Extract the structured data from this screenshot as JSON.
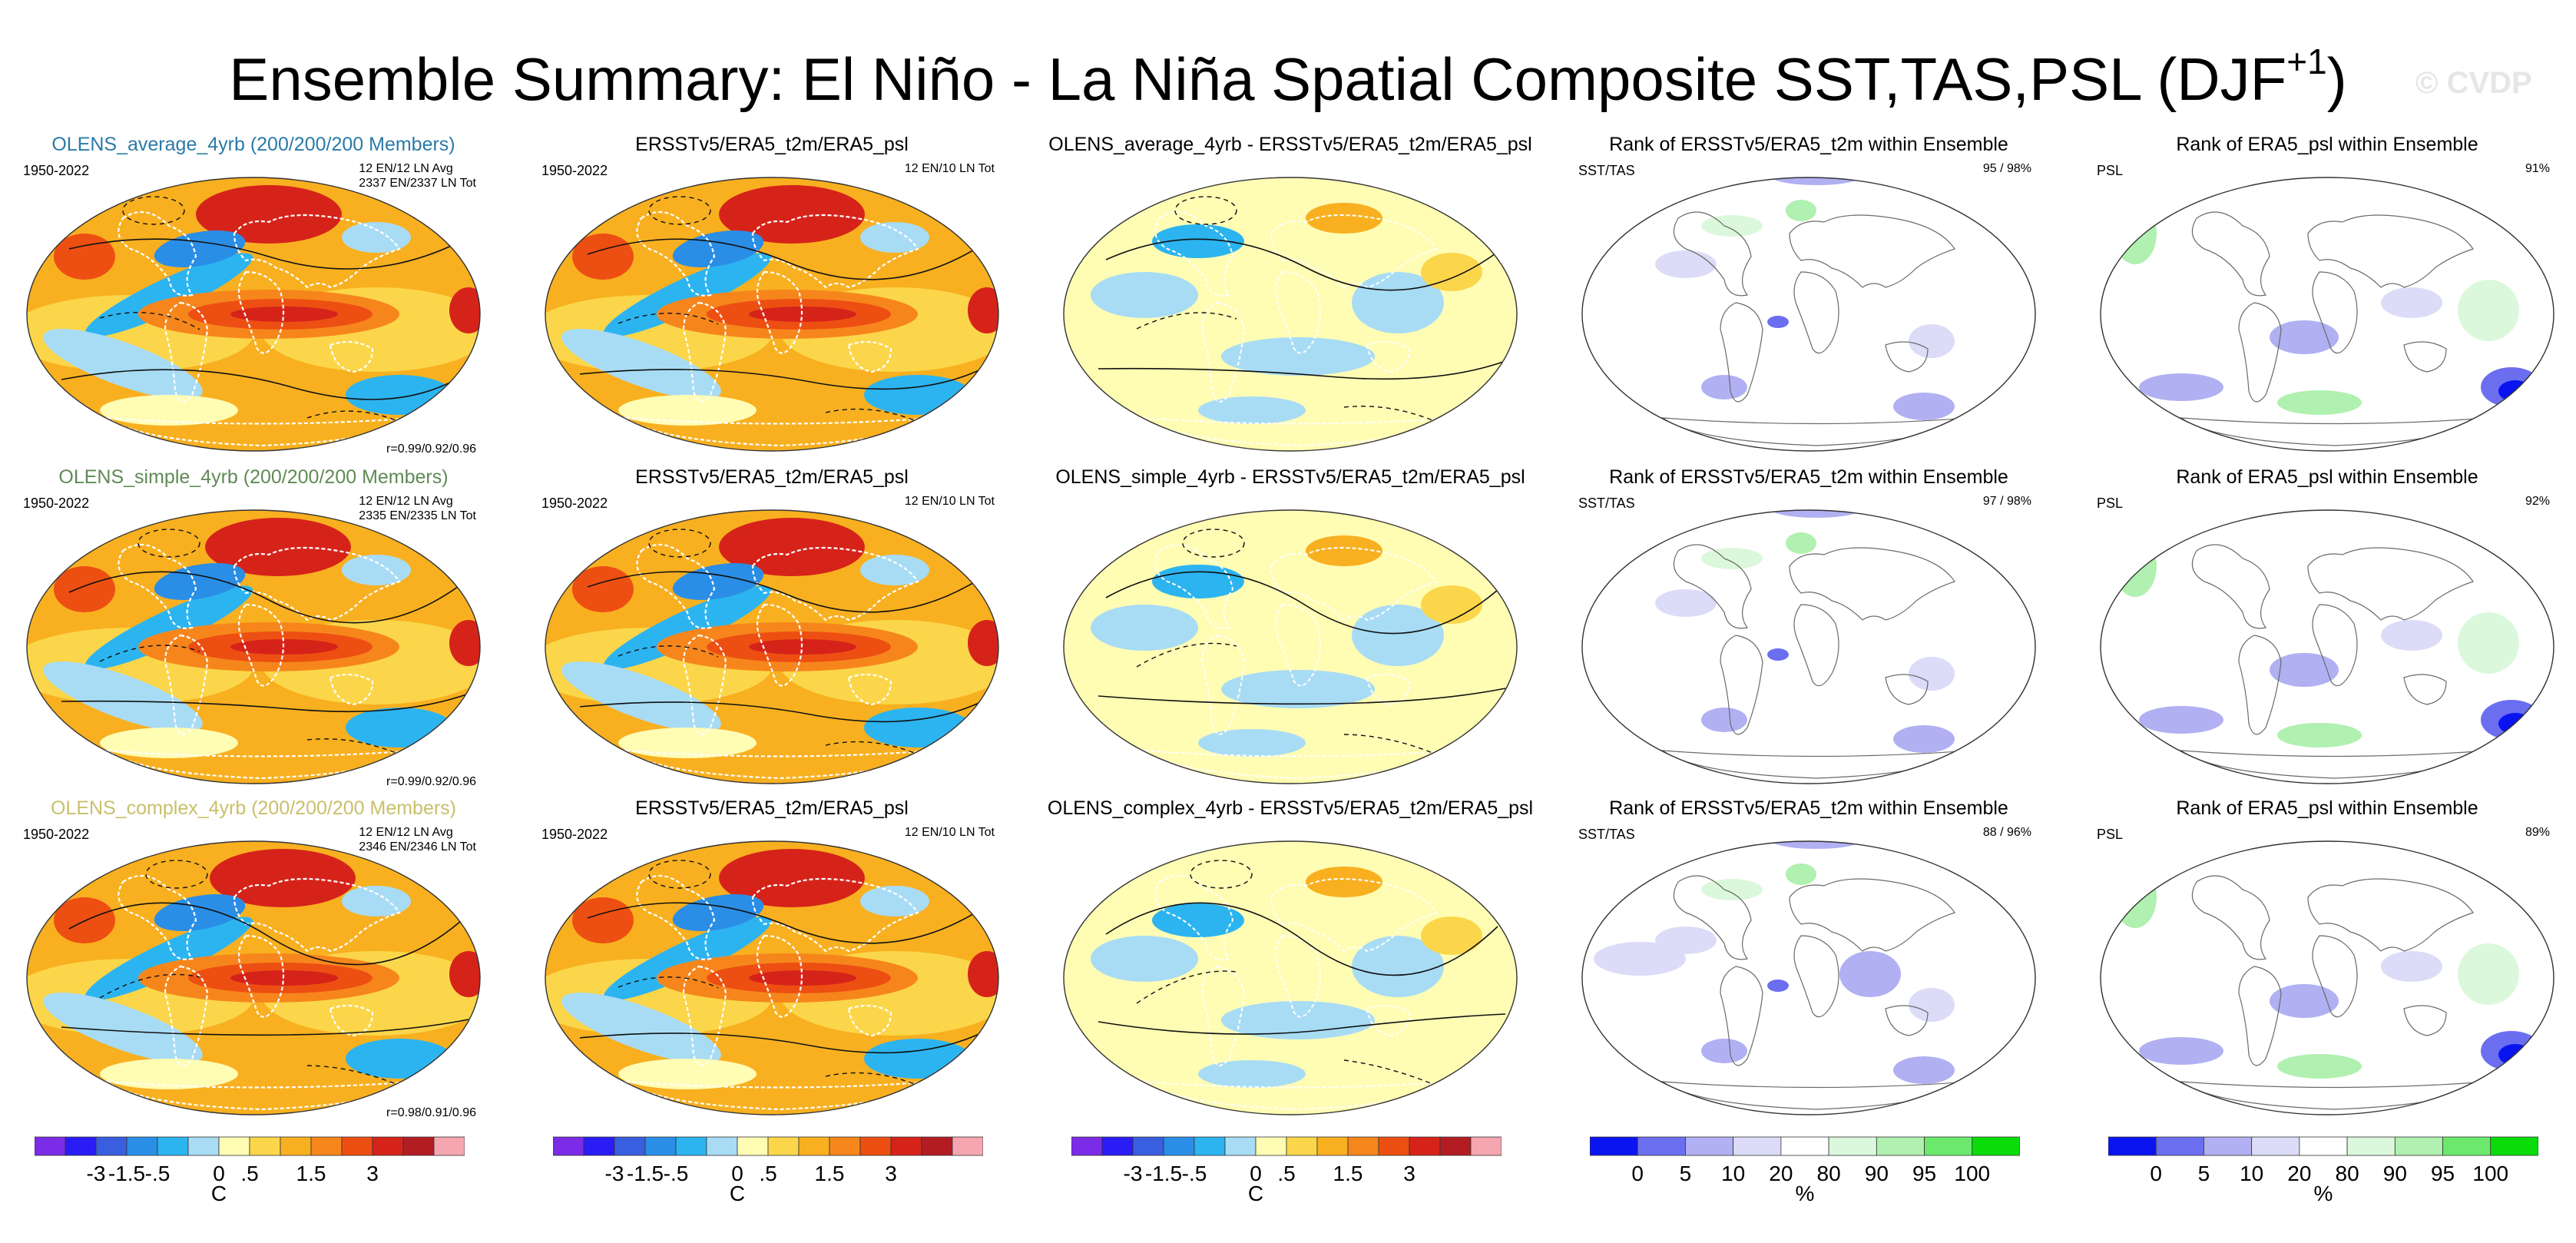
{
  "title": {
    "main": "Ensemble Summary: El Niño - La Niña Spatial Composite SST,TAS,PSL (DJF",
    "superscript": "+1",
    "close": ")",
    "watermark": "© CVDP"
  },
  "colors": {
    "temp_scale": [
      "#7b2ce6",
      "#2a1cf5",
      "#3a5ee0",
      "#2a8ee6",
      "#2cb4f0",
      "#a8dcf5",
      "#fffcb4",
      "#fbd64a",
      "#f8b020",
      "#f6861c",
      "#ed4f12",
      "#d6231a",
      "#b41c24",
      "#f6a6b0"
    ],
    "rank_scale": [
      "#0a14f0",
      "#6c6ef0",
      "#b0b0f2",
      "#dcdcf8",
      "#ffffff",
      "#dcf8dc",
      "#b0f0b0",
      "#6ce86c",
      "#0adc0a"
    ],
    "land_outline_temp": "#ffffff",
    "land_outline_rank": "#6a6a6a"
  },
  "rows": [
    {
      "ensemble_title": "OLENS_average_4yrb (200/200/200 Members)",
      "ensemble_title_color": "#2a7aa8",
      "period": "1950-2022",
      "counts_line1": "12 EN/12 LN Avg",
      "counts_line2": "2337 EN/2337 LN Tot",
      "corr": "r=0.99/0.92/0.96",
      "obs_title": "ERSSTv5/ERA5_t2m/ERA5_psl",
      "obs_period": "1950-2022",
      "obs_counts": "12 EN/10 LN Tot",
      "diff_title": "OLENS_average_4yrb - ERSSTv5/ERA5_t2m/ERA5_psl",
      "rank_sst_title": "Rank of ERSSTv5/ERA5_t2m within Ensemble",
      "rank_sst_left": "SST/TAS",
      "rank_sst_right": "95 / 98%",
      "rank_psl_title": "Rank of ERA5_psl within Ensemble",
      "rank_psl_left": "PSL",
      "rank_psl_right": "91%"
    },
    {
      "ensemble_title": "OLENS_simple_4yrb (200/200/200 Members)",
      "ensemble_title_color": "#5f8a55",
      "period": "1950-2022",
      "counts_line1": "12 EN/12 LN Avg",
      "counts_line2": "2335 EN/2335 LN Tot",
      "corr": "r=0.99/0.92/0.96",
      "obs_title": "ERSSTv5/ERA5_t2m/ERA5_psl",
      "obs_period": "1950-2022",
      "obs_counts": "12 EN/10 LN Tot",
      "diff_title": "OLENS_simple_4yrb - ERSSTv5/ERA5_t2m/ERA5_psl",
      "rank_sst_title": "Rank of ERSSTv5/ERA5_t2m within Ensemble",
      "rank_sst_left": "SST/TAS",
      "rank_sst_right": "97 / 98%",
      "rank_psl_title": "Rank of ERA5_psl within Ensemble",
      "rank_psl_left": "PSL",
      "rank_psl_right": "92%"
    },
    {
      "ensemble_title": "OLENS_complex_4yrb (200/200/200 Members)",
      "ensemble_title_color": "#c8c06a",
      "period": "1950-2022",
      "counts_line1": "12 EN/12 LN Avg",
      "counts_line2": "2346 EN/2346 LN Tot",
      "corr": "r=0.98/0.91/0.96",
      "obs_title": "ERSSTv5/ERA5_t2m/ERA5_psl",
      "obs_period": "1950-2022",
      "obs_counts": "12 EN/10 LN Tot",
      "diff_title": "OLENS_complex_4yrb - ERSSTv5/ERA5_t2m/ERA5_psl",
      "rank_sst_title": "Rank of ERSSTv5/ERA5_t2m within Ensemble",
      "rank_sst_left": "SST/TAS",
      "rank_sst_right": "88 / 96%",
      "rank_psl_title": "Rank of ERA5_psl within Ensemble",
      "rank_psl_left": "PSL",
      "rank_psl_right": "89%"
    }
  ],
  "chart_data": {
    "type": "heatmap",
    "description_type": "map grid of composite anomalies and ensemble ranks",
    "temp_colorbar": {
      "tick_labels": [
        "-3",
        "-1.5",
        "-.5",
        "0",
        ".5",
        "1.5",
        "3"
      ],
      "tick_values": [
        -3,
        -1.5,
        -0.5,
        0,
        0.5,
        1.5,
        3
      ],
      "unit": "C"
    },
    "rank_colorbar": {
      "tick_labels": [
        "0",
        "5",
        "10",
        "20",
        "80",
        "90",
        "95",
        "100"
      ],
      "tick_values": [
        0,
        5,
        10,
        20,
        80,
        90,
        95,
        100
      ],
      "unit": "%"
    }
  }
}
